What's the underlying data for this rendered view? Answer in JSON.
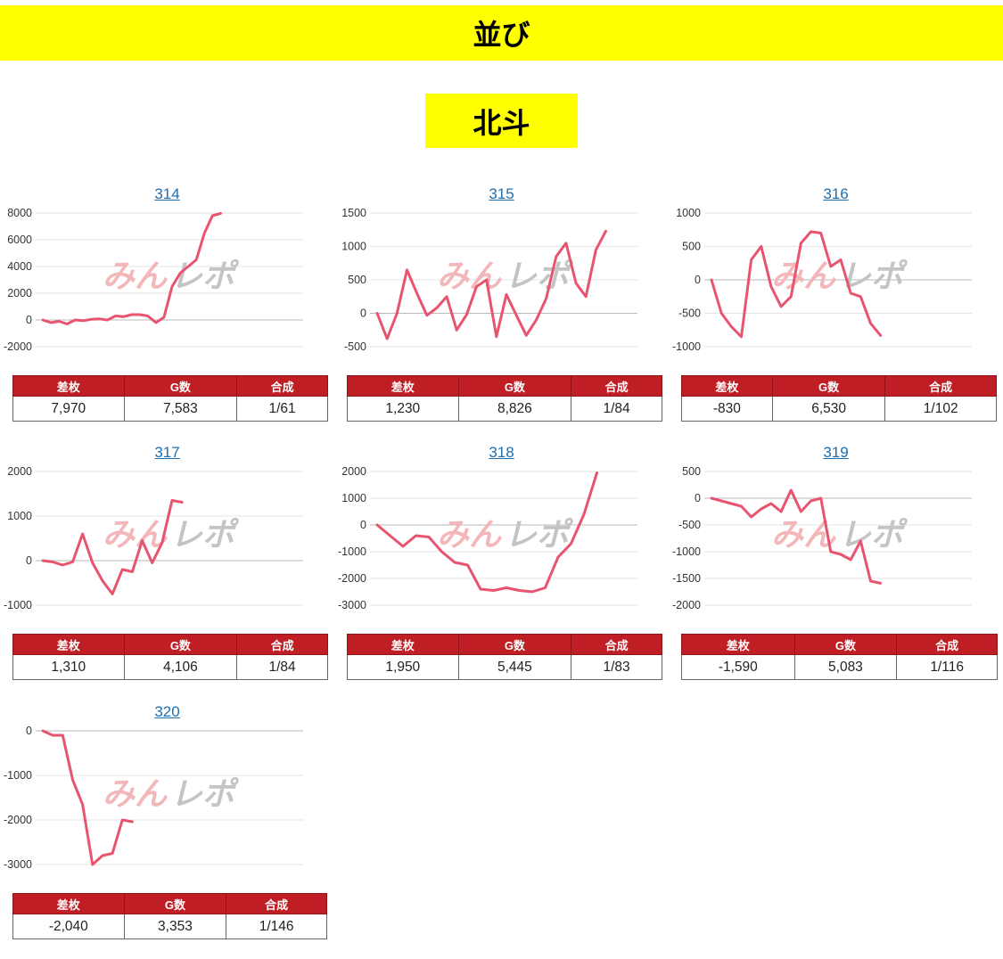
{
  "header": {
    "title": "並び",
    "subtitle": "北斗"
  },
  "line_color": "#e8546f",
  "table_header_color": "#be1e24",
  "watermark_text": "みんレポ",
  "chart_data": [
    {
      "type": "line",
      "title": "314",
      "ylim": [
        -2000,
        8000
      ],
      "yticks": [
        -2000,
        0,
        2000,
        4000,
        6000,
        8000
      ],
      "grid": true,
      "n_points": 33,
      "values": [
        0,
        -200,
        -100,
        -300,
        0,
        -50,
        50,
        80,
        0,
        300,
        250,
        400,
        400,
        300,
        -200,
        200,
        2500,
        3500,
        4000,
        4500,
        6500,
        7800,
        7970
      ],
      "stats": {
        "labels": [
          "差枚",
          "G数",
          "合成"
        ],
        "values": [
          "7,970",
          "7,583",
          "1/61"
        ]
      }
    },
    {
      "type": "line",
      "title": "315",
      "ylim": [
        -500,
        1500
      ],
      "yticks": [
        -500,
        0,
        500,
        1000,
        1500
      ],
      "grid": true,
      "n_points": 27,
      "values": [
        0,
        -380,
        0,
        650,
        300,
        -30,
        80,
        250,
        -250,
        -20,
        400,
        500,
        -350,
        280,
        -30,
        -330,
        -100,
        220,
        850,
        1050,
        450,
        250,
        950,
        1230
      ],
      "stats": {
        "labels": [
          "差枚",
          "G数",
          "合成"
        ],
        "values": [
          "1,230",
          "8,826",
          "1/84"
        ]
      }
    },
    {
      "type": "line",
      "title": "316",
      "ylim": [
        -1000,
        1000
      ],
      "yticks": [
        -1000,
        -500,
        0,
        500,
        1000
      ],
      "grid": true,
      "n_points": 27,
      "values": [
        0,
        -500,
        -700,
        -850,
        300,
        500,
        -100,
        -400,
        -250,
        550,
        720,
        700,
        200,
        300,
        -200,
        -250,
        -650,
        -830
      ],
      "stats": {
        "labels": [
          "差枚",
          "G数",
          "合成"
        ],
        "values": [
          "-830",
          "6,530",
          "1/102"
        ]
      }
    },
    {
      "type": "line",
      "title": "317",
      "ylim": [
        -1000,
        2000
      ],
      "yticks": [
        -1000,
        0,
        1000,
        2000
      ],
      "grid": true,
      "n_points": 27,
      "values": [
        0,
        -30,
        -100,
        -30,
        600,
        -50,
        -450,
        -750,
        -200,
        -250,
        450,
        -50,
        400,
        1350,
        1310
      ],
      "stats": {
        "labels": [
          "差枚",
          "G数",
          "合成"
        ],
        "values": [
          "1,310",
          "4,106",
          "1/84"
        ]
      }
    },
    {
      "type": "line",
      "title": "318",
      "ylim": [
        -3000,
        2000
      ],
      "yticks": [
        -3000,
        -2000,
        -1000,
        0,
        1000,
        2000
      ],
      "grid": true,
      "n_points": 21,
      "values": [
        0,
        -400,
        -800,
        -400,
        -450,
        -1000,
        -1400,
        -1500,
        -2400,
        -2450,
        -2350,
        -2450,
        -2500,
        -2350,
        -1200,
        -700,
        400,
        1950
      ],
      "stats": {
        "labels": [
          "差枚",
          "G数",
          "合成"
        ],
        "values": [
          "1,950",
          "5,445",
          "1/83"
        ]
      }
    },
    {
      "type": "line",
      "title": "319",
      "ylim": [
        -2000,
        500
      ],
      "yticks": [
        -2000,
        -1500,
        -1000,
        -500,
        0,
        500
      ],
      "grid": true,
      "n_points": 27,
      "values": [
        0,
        -50,
        -100,
        -150,
        -350,
        -200,
        -100,
        -250,
        150,
        -250,
        -50,
        0,
        -1000,
        -1050,
        -1150,
        -800,
        -1550,
        -1590
      ],
      "stats": {
        "labels": [
          "差枚",
          "G数",
          "合成"
        ],
        "values": [
          "-1,590",
          "5,083",
          "1/116"
        ]
      }
    },
    {
      "type": "line",
      "title": "320",
      "ylim": [
        -3000,
        0
      ],
      "yticks": [
        -3000,
        -2000,
        -1000,
        0
      ],
      "grid": true,
      "n_points": 27,
      "values": [
        0,
        -100,
        -100,
        -1100,
        -1650,
        -3000,
        -2800,
        -2750,
        -2000,
        -2040
      ],
      "stats": {
        "labels": [
          "差枚",
          "G数",
          "合成"
        ],
        "values": [
          "-2,040",
          "3,353",
          "1/146"
        ]
      }
    }
  ]
}
